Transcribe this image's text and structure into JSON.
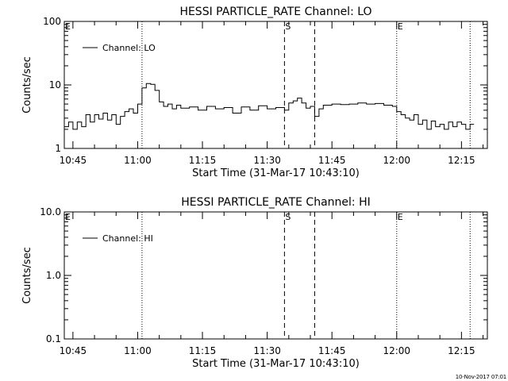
{
  "footer": {
    "timestamp": "10-Nov-2017 07:01"
  },
  "chart_data": [
    {
      "type": "line",
      "title": "HESSI PARTICLE_RATE Channel: LO",
      "xlabel": "Start Time (31-Mar-17 10:43:10)",
      "ylabel": "Counts/sec",
      "y_scale": "log",
      "ylim": [
        1,
        100
      ],
      "xlim": [
        "10:43",
        "12:21"
      ],
      "y_ticks": [
        "1",
        "10",
        "100"
      ],
      "x_ticks": [
        "10:45",
        "11:00",
        "11:15",
        "11:30",
        "11:45",
        "12:00",
        "12:15"
      ],
      "legend": {
        "position": "top-left",
        "entries": [
          "Channel: LO"
        ]
      },
      "markers": [
        {
          "label": "E",
          "time": "10:43",
          "style": "dotted"
        },
        {
          "label": "",
          "time": "11:01",
          "style": "dotted"
        },
        {
          "label": "S",
          "time": "11:34",
          "style": "dashed"
        },
        {
          "label": "",
          "time": "11:41",
          "style": "dashed"
        },
        {
          "label": "E",
          "time": "12:00",
          "style": "dotted"
        },
        {
          "label": "",
          "time": "12:17",
          "style": "dotted"
        }
      ],
      "series": [
        {
          "name": "Channel: LO",
          "x": [
            "10:43",
            "10:44",
            "10:45",
            "10:46",
            "10:47",
            "10:48",
            "10:49",
            "10:50",
            "10:51",
            "10:52",
            "10:53",
            "10:54",
            "10:55",
            "10:56",
            "10:57",
            "10:58",
            "10:59",
            "11:00",
            "11:01",
            "11:02",
            "11:03",
            "11:04",
            "11:05",
            "11:06",
            "11:07",
            "11:08",
            "11:09",
            "11:10",
            "11:12",
            "11:14",
            "11:16",
            "11:18",
            "11:20",
            "11:22",
            "11:24",
            "11:26",
            "11:28",
            "11:30",
            "11:32",
            "11:34",
            "11:35",
            "11:36",
            "11:37",
            "11:38",
            "11:39",
            "11:40",
            "11:41",
            "11:42",
            "11:43",
            "11:45",
            "11:47",
            "11:49",
            "11:51",
            "11:53",
            "11:55",
            "11:57",
            "11:59",
            "12:00",
            "12:01",
            "12:02",
            "12:03",
            "12:04",
            "12:05",
            "12:06",
            "12:07",
            "12:08",
            "12:09",
            "12:10",
            "12:11",
            "12:12",
            "12:13",
            "12:14",
            "12:15",
            "12:16",
            "12:17"
          ],
          "values": [
            2.2,
            2.6,
            2.0,
            2.6,
            2.2,
            3.4,
            2.6,
            3.4,
            2.9,
            3.6,
            2.8,
            3.4,
            2.4,
            3.2,
            3.8,
            4.2,
            3.6,
            5.0,
            9.0,
            10.5,
            10.2,
            8.2,
            5.4,
            4.6,
            5.0,
            4.2,
            4.8,
            4.3,
            4.5,
            4.0,
            4.6,
            4.2,
            4.4,
            3.6,
            4.5,
            4.0,
            4.7,
            4.2,
            4.4,
            4.0,
            5.2,
            5.6,
            6.2,
            5.2,
            4.3,
            4.6,
            3.2,
            4.2,
            4.8,
            5.0,
            4.9,
            5.0,
            5.2,
            5.0,
            5.1,
            4.8,
            4.6,
            3.8,
            3.4,
            3.0,
            2.8,
            3.4,
            2.4,
            2.8,
            2.0,
            2.7,
            2.2,
            2.4,
            2.0,
            2.6,
            2.2,
            2.6,
            2.4,
            2.0,
            2.4
          ]
        }
      ]
    },
    {
      "type": "line",
      "title": "HESSI PARTICLE_RATE Channel: HI",
      "xlabel": "Start Time (31-Mar-17 10:43:10)",
      "ylabel": "Counts/sec",
      "y_scale": "log",
      "ylim": [
        0.1,
        10
      ],
      "xlim": [
        "10:43",
        "12:21"
      ],
      "y_ticks": [
        "0.1",
        "1.0",
        "10.0"
      ],
      "x_ticks": [
        "10:45",
        "11:00",
        "11:15",
        "11:30",
        "11:45",
        "12:00",
        "12:15"
      ],
      "legend": {
        "position": "top-left",
        "entries": [
          "Channel: HI"
        ]
      },
      "markers": [
        {
          "label": "E",
          "time": "10:43",
          "style": "dotted"
        },
        {
          "label": "",
          "time": "11:01",
          "style": "dotted"
        },
        {
          "label": "S",
          "time": "11:34",
          "style": "dashed"
        },
        {
          "label": "",
          "time": "11:41",
          "style": "dashed"
        },
        {
          "label": "E",
          "time": "12:00",
          "style": "dotted"
        },
        {
          "label": "",
          "time": "12:17",
          "style": "dotted"
        }
      ],
      "series": [
        {
          "name": "Channel: HI",
          "x": [],
          "values": []
        }
      ]
    }
  ]
}
